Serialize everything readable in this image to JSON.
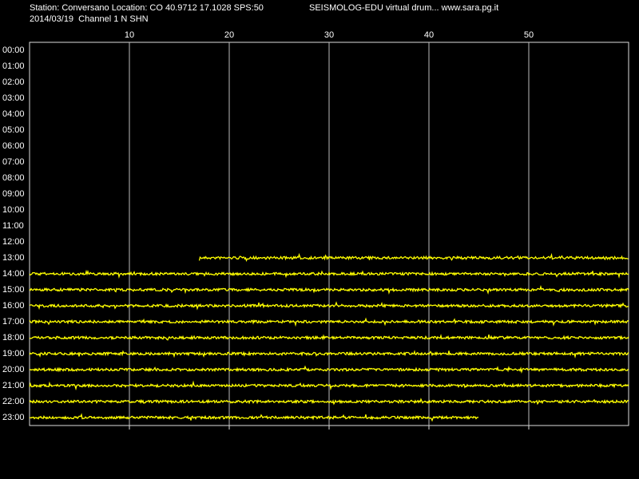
{
  "header": {
    "station": "Station: Conversano Location: CO 40.9712 17.1028 SPS:50",
    "title": "SEISMOLOG-EDU virtual drum... www.sara.pg.it",
    "date": "2014/03/19  Channel 1 N SHN"
  },
  "xlim": [
    0,
    60
  ],
  "xticks": [
    10,
    20,
    30,
    40,
    50
  ],
  "rows": [
    {
      "label": "00:00"
    },
    {
      "label": "01:00"
    },
    {
      "label": "02:00"
    },
    {
      "label": "03:00"
    },
    {
      "label": "04:00"
    },
    {
      "label": "05:00"
    },
    {
      "label": "06:00"
    },
    {
      "label": "07:00"
    },
    {
      "label": "08:00"
    },
    {
      "label": "09:00"
    },
    {
      "label": "10:00"
    },
    {
      "label": "11:00"
    },
    {
      "label": "12:00"
    },
    {
      "label": "13:00",
      "trace": [
        17,
        60
      ]
    },
    {
      "label": "14:00",
      "trace": [
        0,
        60
      ]
    },
    {
      "label": "15:00",
      "trace": [
        0,
        60
      ]
    },
    {
      "label": "16:00",
      "trace": [
        0,
        60
      ]
    },
    {
      "label": "17:00",
      "trace": [
        0,
        60
      ]
    },
    {
      "label": "18:00",
      "trace": [
        0,
        60
      ]
    },
    {
      "label": "19:00",
      "trace": [
        0,
        60
      ]
    },
    {
      "label": "20:00",
      "trace": [
        0,
        60
      ]
    },
    {
      "label": "21:00",
      "trace": [
        0,
        60
      ]
    },
    {
      "label": "22:00",
      "trace": [
        0,
        60
      ]
    },
    {
      "label": "23:00",
      "trace": [
        0,
        45
      ]
    }
  ]
}
